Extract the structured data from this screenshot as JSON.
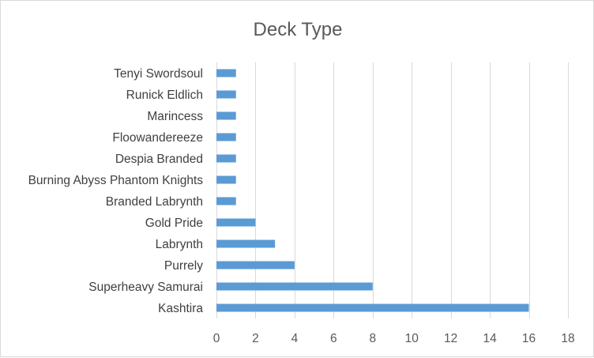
{
  "chart_data": {
    "type": "bar",
    "orientation": "horizontal",
    "title": "Deck Type",
    "xlabel": "",
    "ylabel": "",
    "categories": [
      "Kashtira",
      "Superheavy Samurai",
      "Purrely",
      "Labrynth",
      "Gold Pride",
      "Branded Labrynth",
      "Burning Abyss Phantom Knights",
      "Despia Branded",
      "Floowandereeze",
      "Marincess",
      "Runick Eldlich",
      "Tenyi Swordsoul"
    ],
    "values": [
      16,
      8,
      4,
      3,
      2,
      1,
      1,
      1,
      1,
      1,
      1,
      1
    ],
    "xlim": [
      0,
      18
    ],
    "xticks": [
      0,
      2,
      4,
      6,
      8,
      10,
      12,
      14,
      16,
      18
    ],
    "grid": "vertical major gridlines",
    "legend": "none",
    "colors": {
      "bar": "#5b9bd5",
      "grid": "#d9d9d9",
      "text": "#595959"
    }
  }
}
